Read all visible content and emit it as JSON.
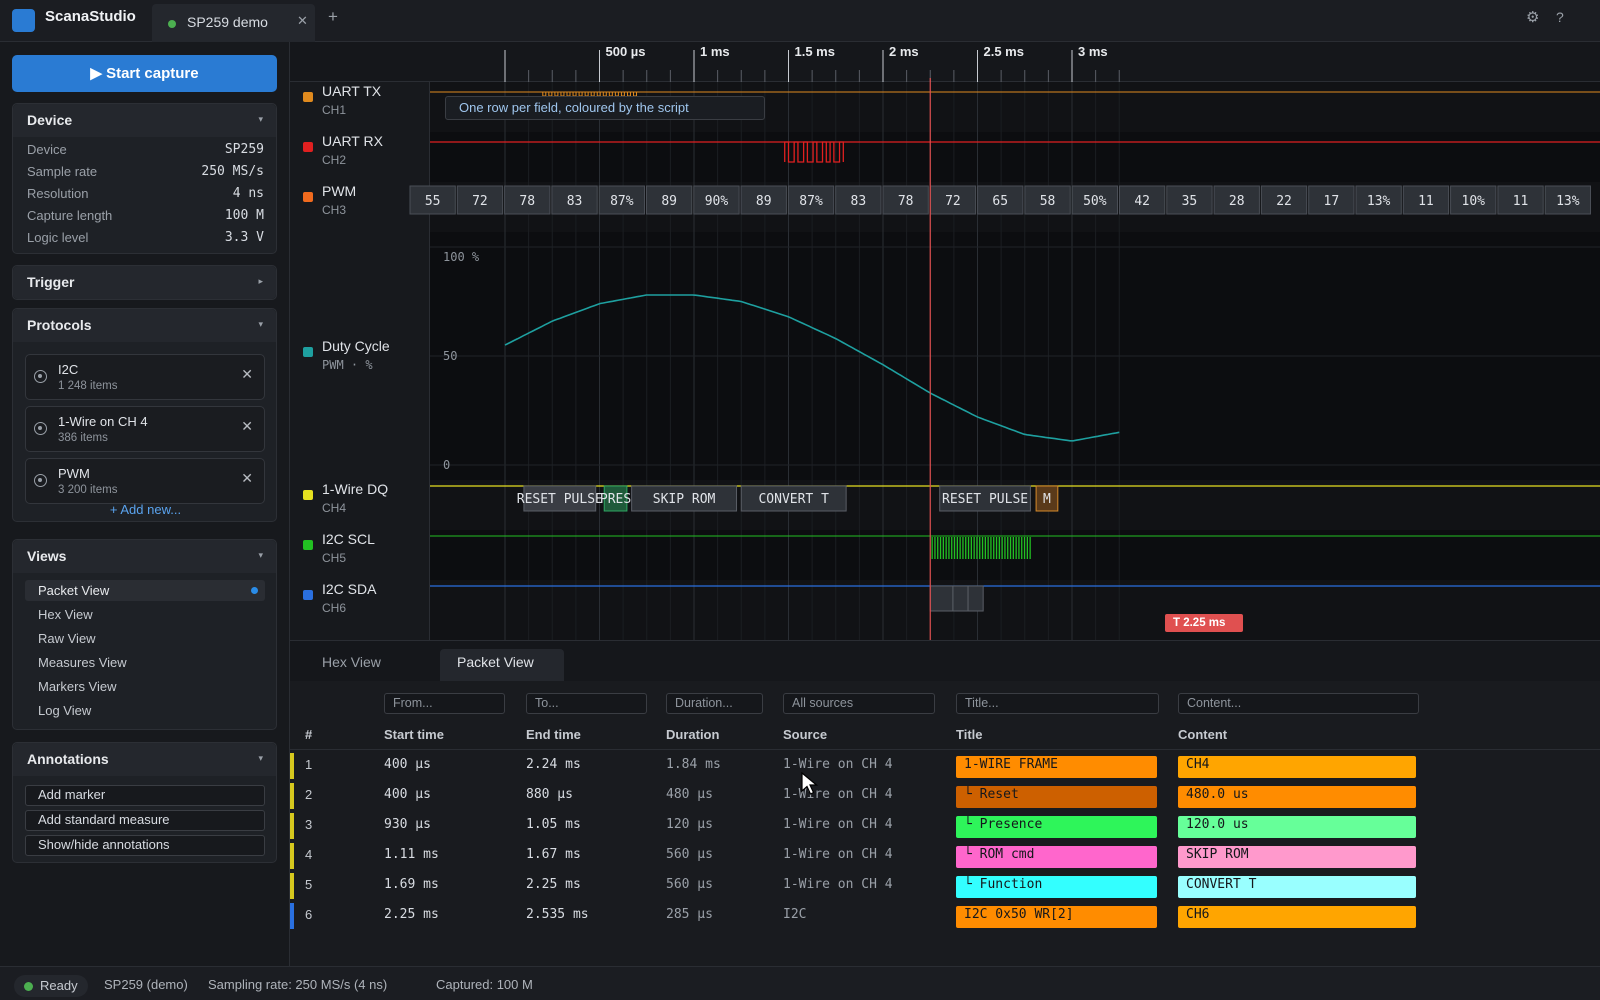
{
  "app": {
    "name": "ScanaStudio",
    "tab_title": "SP259 demo",
    "tab_close": "✕",
    "tab_add": "+",
    "settings_glyph": "⚙",
    "help_glyph": "?"
  },
  "sidebar": {
    "start_capture": "▶ Start capture",
    "device": {
      "title": "Device",
      "caret": "▾",
      "rows": [
        {
          "k": "Device",
          "v": "SP259"
        },
        {
          "k": "Sample rate",
          "v": "250 MS/s"
        },
        {
          "k": "Resolution",
          "v": "4 ns"
        },
        {
          "k": "Capture length",
          "v": "100 M"
        },
        {
          "k": "Logic level",
          "v": "3.3 V"
        }
      ]
    },
    "trigger": {
      "title": "Trigger",
      "caret": "▸"
    },
    "protocols": {
      "title": "Protocols",
      "caret": "▾",
      "items": [
        {
          "name": "I2C",
          "count": "1 248 items"
        },
        {
          "name": "1-Wire on CH 4",
          "count": "386 items"
        },
        {
          "name": "PWM",
          "count": "3 200 items"
        }
      ],
      "remove_glyph": "✕",
      "add_new": "+ Add new..."
    },
    "views": {
      "title": "Views",
      "caret": "▾",
      "items": [
        "Packet View",
        "Hex View",
        "Raw View",
        "Measures View",
        "Markers View",
        "Log View"
      ]
    },
    "annotations": {
      "title": "Annotations",
      "caret": "▾",
      "buttons": [
        "Add marker",
        "Add standard measure",
        "Show/hide annotations"
      ]
    }
  },
  "ruler": {
    "labels": [
      "500 µs",
      "1 ms",
      "1.5 ms",
      "2 ms",
      "2.5 ms",
      "3 ms"
    ]
  },
  "channels": [
    {
      "name": "UART TX",
      "sub": "CH1",
      "color": "#e08a1e"
    },
    {
      "name": "UART RX",
      "sub": "CH2",
      "color": "#e02020"
    },
    {
      "name": "PWM",
      "sub": "CH3",
      "color": "#f06a1e"
    },
    {
      "name": "Duty Cycle",
      "sub": "PWM · %",
      "color": "#1ea0a0"
    },
    {
      "name": "1-Wire DQ",
      "sub": "CH4",
      "color": "#e6e020"
    },
    {
      "name": "I2C SCL",
      "sub": "CH5",
      "color": "#22c022"
    },
    {
      "name": "I2C SDA",
      "sub": "CH6",
      "color": "#2a70e0"
    }
  ],
  "pwm_values": [
    "55",
    "72",
    "78",
    "83",
    "87%",
    "89",
    "90%",
    "89",
    "87%",
    "83",
    "78",
    "72",
    "65",
    "58",
    "50%",
    "42",
    "35",
    "28",
    "22",
    "17",
    "13%",
    "11",
    "10%",
    "11",
    "13%"
  ],
  "duty_axis": {
    "top": "100 %",
    "mid": "50",
    "bottom": "0"
  },
  "onewire_frames": [
    "RESET PULSE",
    "PRES",
    "SKIP ROM",
    "CONVERT T",
    "RESET PULSE",
    "M"
  ],
  "overlay_note": "One row per field, coloured by the script",
  "cursor_label": "T 2.25 ms",
  "chart_data": {
    "type": "line",
    "title": "",
    "series": [
      {
        "name": "Duty Cycle",
        "x_ms": [
          0.0,
          0.25,
          0.5,
          0.75,
          1.0,
          1.25,
          1.5,
          1.75,
          2.0,
          2.25,
          2.5,
          2.75,
          3.0,
          3.25
        ],
        "values": [
          55,
          66,
          74,
          78,
          78,
          75,
          68,
          58,
          46,
          33,
          22,
          14,
          11,
          15
        ]
      }
    ],
    "xlabel": "",
    "ylabel": "",
    "ylim": [
      0,
      100
    ]
  },
  "bottom": {
    "tabs": [
      "Hex View",
      "Packet View"
    ],
    "filters": {
      "from": "From...",
      "to": "To...",
      "duration": "Duration...",
      "sources": "All sources",
      "title": "Title...",
      "content": "Content..."
    },
    "headers": [
      "#",
      "Start time",
      "End time",
      "Duration",
      "Source",
      "Title",
      "Content"
    ],
    "rows": [
      {
        "n": "1",
        "start": "400 µs",
        "end": "2.24 ms",
        "dur": "1.84 ms",
        "src": "1-Wire on CH 4",
        "title": "1-WIRE FRAME",
        "content": "CH4",
        "bar": "#d6c81e",
        "tcol": "#ff8c00",
        "ccol": "#ffa500"
      },
      {
        "n": "2",
        "start": "400 µs",
        "end": "880 µs",
        "dur": "480 µs",
        "src": "1-Wire on CH 4",
        "title": "└ Reset",
        "content": "480.0 us",
        "bar": "#d6c81e",
        "tcol": "#cd6000",
        "ccol": "#ff8c00"
      },
      {
        "n": "3",
        "start": "930 µs",
        "end": "1.05 ms",
        "dur": "120 µs",
        "src": "1-Wire on CH 4",
        "title": "└ Presence",
        "content": "120.0 us",
        "bar": "#d6c81e",
        "tcol": "#2ef55a",
        "ccol": "#66ff99"
      },
      {
        "n": "4",
        "start": "1.11 ms",
        "end": "1.67 ms",
        "dur": "560 µs",
        "src": "1-Wire on CH 4",
        "title": "└ ROM cmd",
        "content": "SKIP ROM",
        "bar": "#d6c81e",
        "tcol": "#ff66cc",
        "ccol": "#ff99cc"
      },
      {
        "n": "5",
        "start": "1.69 ms",
        "end": "2.25 ms",
        "dur": "560 µs",
        "src": "1-Wire on CH 4",
        "title": "└ Function",
        "content": "CONVERT T",
        "bar": "#d6c81e",
        "tcol": "#33ffff",
        "ccol": "#99ffff"
      },
      {
        "n": "6",
        "start": "2.25 ms",
        "end": "2.535 ms",
        "dur": "285 µs",
        "src": "I2C",
        "title": "I2C 0x50 WR[2]",
        "content": "CH6",
        "bar": "#2a70e0",
        "tcol": "#ff8c00",
        "ccol": "#ffa500"
      }
    ]
  },
  "status": {
    "ready": "Ready",
    "device": "SP259 (demo)",
    "rate": "Sampling rate: 250 MS/s (4 ns)",
    "captured": "Captured: 100 M"
  }
}
